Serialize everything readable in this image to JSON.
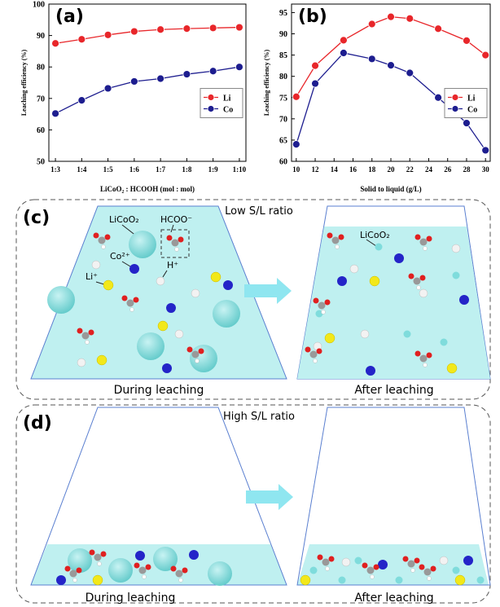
{
  "chart_data": [
    {
      "type": "line",
      "label": "(a)",
      "xlabel": "LiCoO₂ : HCOOH (mol : mol)",
      "ylabel": "Leaching efficiency (%)",
      "categories": [
        "1:3",
        "1:4",
        "1:5",
        "1:6",
        "1:7",
        "1:8",
        "1:9",
        "1:10"
      ],
      "series": [
        {
          "name": "Li",
          "color": "#e8262a",
          "values": [
            87.5,
            88.8,
            90.2,
            91.3,
            91.9,
            92.2,
            92.4,
            92.6
          ]
        },
        {
          "name": "Co",
          "color": "#1d1d8f",
          "values": [
            65.2,
            69.4,
            73.2,
            75.4,
            76.3,
            77.7,
            78.7,
            80.0
          ]
        }
      ],
      "ylim": [
        50,
        100
      ],
      "yticks": [
        50,
        60,
        70,
        80,
        90,
        100
      ],
      "legend": "center right"
    },
    {
      "type": "line",
      "label": "(b)",
      "xlabel": "Solid to liquid (g/L)",
      "ylabel": "Leaching efficiency (%)",
      "x": [
        10,
        12,
        15,
        18,
        20,
        22,
        25,
        28,
        30
      ],
      "series": [
        {
          "name": "Li",
          "color": "#e8262a",
          "values": [
            75.2,
            82.5,
            88.5,
            92.3,
            94.0,
            93.6,
            91.2,
            88.4,
            85.0
          ]
        },
        {
          "name": "Co",
          "color": "#1d1d8f",
          "values": [
            64.0,
            78.3,
            85.5,
            84.1,
            82.6,
            80.8,
            75.0,
            69.0,
            62.6
          ]
        }
      ],
      "xlim": [
        9.5,
        30.5
      ],
      "xticks": [
        10,
        12,
        14,
        16,
        18,
        20,
        22,
        24,
        26,
        28,
        30
      ],
      "ylim": [
        60,
        97
      ],
      "yticks": [
        60,
        65,
        70,
        75,
        80,
        85,
        90,
        95
      ],
      "legend": "center right"
    }
  ],
  "diagrams": [
    {
      "label": "(c)",
      "title": "Low S/L ratio",
      "left_caption": "During leaching",
      "right_caption": "After leaching",
      "annotations": [
        "LiCoO₂",
        "HCOO⁻",
        "Co²⁺",
        "H⁺",
        "Li⁺",
        "LiCoO₂"
      ]
    },
    {
      "label": "(d)",
      "title": "High S/L ratio",
      "left_caption": "During leaching",
      "right_caption": "After leaching"
    }
  ]
}
